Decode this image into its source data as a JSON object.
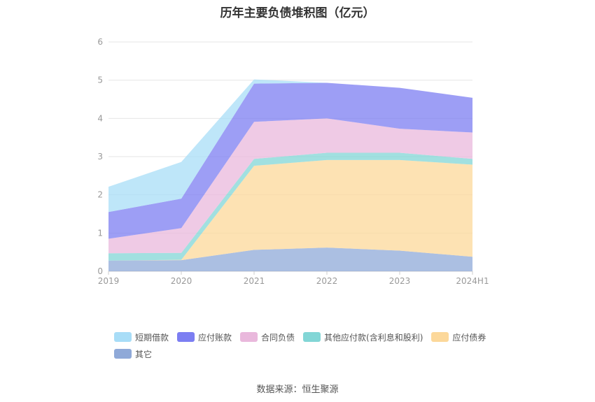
{
  "title": "历年主要负债堆积图（亿元）",
  "source": "数据来源：恒生聚源",
  "chart_data": {
    "type": "area",
    "stacked": true,
    "categories": [
      "2019",
      "2020",
      "2021",
      "2022",
      "2023",
      "2024H1"
    ],
    "ylim": [
      0,
      6
    ],
    "yticks": [
      "0",
      "1",
      "2",
      "3",
      "4",
      "5",
      "6"
    ],
    "grid": true,
    "legend_position": "bottom",
    "series": [
      {
        "name": "其它",
        "color": "#8fa9d8",
        "values": [
          0.28,
          0.29,
          0.56,
          0.62,
          0.54,
          0.38
        ]
      },
      {
        "name": "应付债券",
        "color": "#fcd89a",
        "values": [
          0.0,
          0.01,
          2.2,
          2.29,
          2.37,
          2.41
        ]
      },
      {
        "name": "其他应付款(含利息和股利)",
        "color": "#82d6d6",
        "values": [
          0.19,
          0.18,
          0.18,
          0.19,
          0.19,
          0.15
        ]
      },
      {
        "name": "合同负债",
        "color": "#e9b8dc",
        "values": [
          0.38,
          0.65,
          0.97,
          0.9,
          0.63,
          0.69
        ]
      },
      {
        "name": "应付账款",
        "color": "#7c7ef2",
        "values": [
          0.7,
          0.77,
          1.0,
          0.93,
          1.07,
          0.91
        ]
      },
      {
        "name": "短期借款",
        "color": "#a8ddf7",
        "values": [
          0.66,
          0.96,
          0.11,
          0.0,
          0.0,
          0.0
        ]
      }
    ],
    "legend_order": [
      "短期借款",
      "应付账款",
      "合同负债",
      "其他应付款(含利息和股利)",
      "应付债券",
      "其它"
    ]
  }
}
